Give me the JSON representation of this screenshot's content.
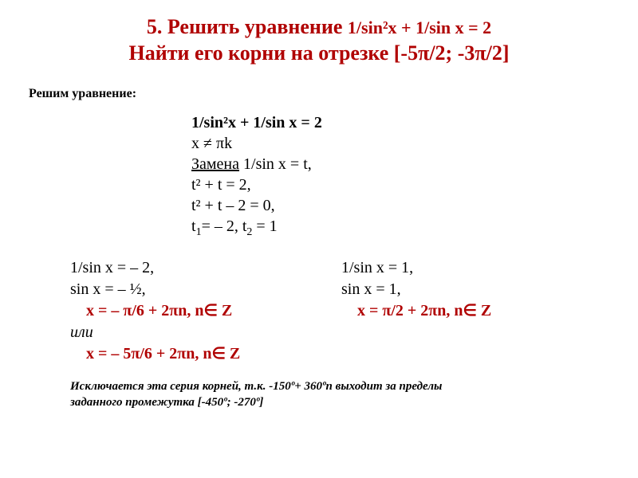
{
  "colors": {
    "accent": "#b00000",
    "text": "#000000",
    "background": "#ffffff"
  },
  "title": {
    "line1_prefix": "5. Решить уравнение ",
    "line1_eq": "1/sin²x + 1/sin x = 2",
    "line2": "Найти его корни на отрезке [-5π/2; -3π/2]"
  },
  "subhead": "Решим уравнение:",
  "steps": {
    "s1": "1/sin²x + 1/sin x = 2",
    "s2": "x ≠ πk",
    "s3_u": "Замена",
    "s3_rest": " 1/sin x = t,",
    "s4": "t² + t = 2,",
    "s5": "t² + t – 2 = 0,",
    "s6_a": "t",
    "s6_sub1": "1",
    "s6_b": "= – 2, t",
    "s6_sub2": "2",
    "s6_c": " = 1"
  },
  "caseLeft": {
    "l1": "1/sin x = – 2,",
    "l2": "sin x = – ½,",
    "l3": "x = – π/6 + 2πn, n∈ Z",
    "l4": "или",
    "l5": "x = – 5π/6 + 2πn, n∈ Z"
  },
  "caseRight": {
    "l1": "1/sin x = 1,",
    "l2": "sin x = 1,",
    "l3": "x = π/2 + 2πn, n∈ Z"
  },
  "note": {
    "l1": "Исключается эта серия корней, т.к. -150º+ 360ºn выходит за пределы",
    "l2": "заданного промежутка [-450º; -270º]"
  }
}
